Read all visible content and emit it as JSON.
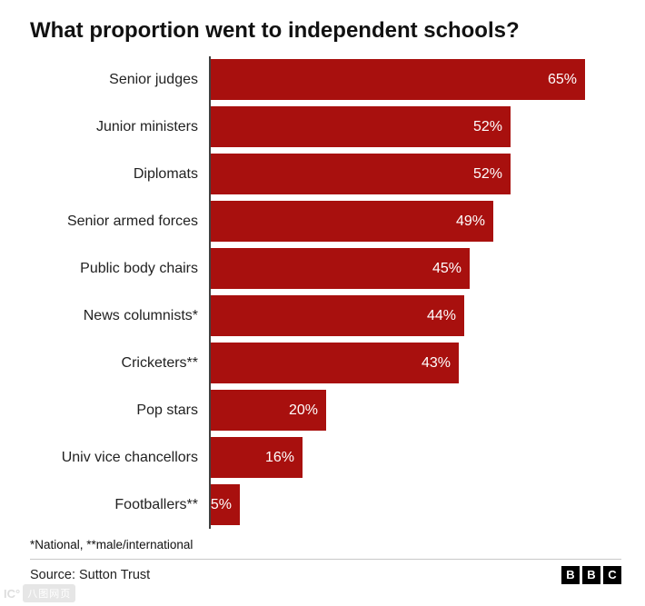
{
  "chart_data": {
    "type": "bar",
    "title": "What proportion went to independent schools?",
    "categories": [
      "Senior judges",
      "Junior ministers",
      "Diplomats",
      "Senior armed forces",
      "Public body chairs",
      "News columnists*",
      "Cricketers**",
      "Pop stars",
      "Univ vice chancellors",
      "Footballers**"
    ],
    "values": [
      65,
      52,
      52,
      49,
      45,
      44,
      43,
      20,
      16,
      5
    ],
    "value_labels": [
      "65%",
      "52%",
      "52%",
      "49%",
      "45%",
      "44%",
      "43%",
      "20%",
      "16%",
      "5%"
    ],
    "xlim": [
      0,
      70
    ],
    "bar_color": "#a8100e",
    "axis_color": "#404040",
    "legend": "none",
    "grid": "off",
    "footnote": "*National, **male/international"
  },
  "source": {
    "label": "Source: Sutton Trust",
    "logo_letters": [
      "B",
      "B",
      "C"
    ]
  },
  "watermark": {
    "prefix": "IC°",
    "box_text": "八图网页"
  }
}
